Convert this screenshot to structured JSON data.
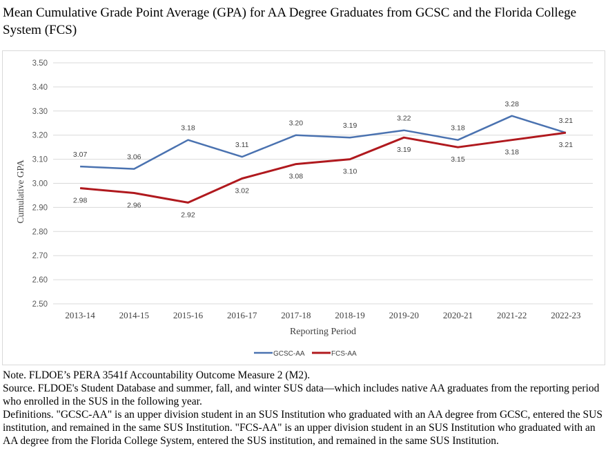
{
  "title": "Mean Cumulative Grade Point Average (GPA) for AA Degree Graduates from GCSC and the Florida College System (FCS)",
  "chart_data": {
    "type": "line",
    "xlabel": "Reporting Period",
    "ylabel": "Cumulative GPA",
    "ylim": [
      2.5,
      3.5
    ],
    "yticks": [
      "2.50",
      "2.60",
      "2.70",
      "2.80",
      "2.90",
      "3.00",
      "3.10",
      "3.20",
      "3.30",
      "3.40",
      "3.50"
    ],
    "categories": [
      "2013-14",
      "2014-15",
      "2015-16",
      "2016-17",
      "2017-18",
      "2018-19",
      "2019-20",
      "2020-21",
      "2021-22",
      "2022-23"
    ],
    "grid": true,
    "legend": "bottom",
    "series": [
      {
        "name": "GCSC-AA",
        "color": "#4a72b0",
        "values": [
          3.07,
          3.06,
          3.18,
          3.11,
          3.2,
          3.19,
          3.22,
          3.18,
          3.28,
          3.21
        ],
        "labels": [
          "3.07",
          "3.06",
          "3.18",
          "3.11",
          "3.20",
          "3.19",
          "3.22",
          "3.18",
          "3.28",
          "3.21"
        ],
        "label_side": [
          "above",
          "above",
          "above",
          "above",
          "above",
          "above",
          "above",
          "above",
          "above",
          "above"
        ]
      },
      {
        "name": "FCS-AA",
        "color": "#b0191e",
        "values": [
          2.98,
          2.96,
          2.92,
          3.02,
          3.08,
          3.1,
          3.19,
          3.15,
          3.18,
          3.21
        ],
        "labels": [
          "2.98",
          "2.96",
          "2.92",
          "3.02",
          "3.08",
          "3.10",
          "3.19",
          "3.15",
          "3.18",
          "3.21"
        ],
        "label_side": [
          "below",
          "below",
          "below",
          "below",
          "below",
          "below",
          "below",
          "below",
          "below",
          "below"
        ]
      }
    ]
  },
  "notes": {
    "note": "Note. FLDOE’s PERA 3541f Accountability Outcome Measure 2 (M2).",
    "source": "Source. FLDOE's Student Database and summer, fall, and winter SUS data—which includes native AA graduates from the reporting period who enrolled in the SUS in the following year.",
    "definitions": "Definitions. \"GCSC-AA\" is an upper division student in an SUS Institution who graduated with an AA degree from GCSC, entered the SUS institution, and remained in the same SUS Institution. \"FCS-AA\" is an upper division student in an SUS Institution who graduated with an AA degree from the Florida College System, entered the SUS institution, and remained in the same SUS Institution."
  }
}
